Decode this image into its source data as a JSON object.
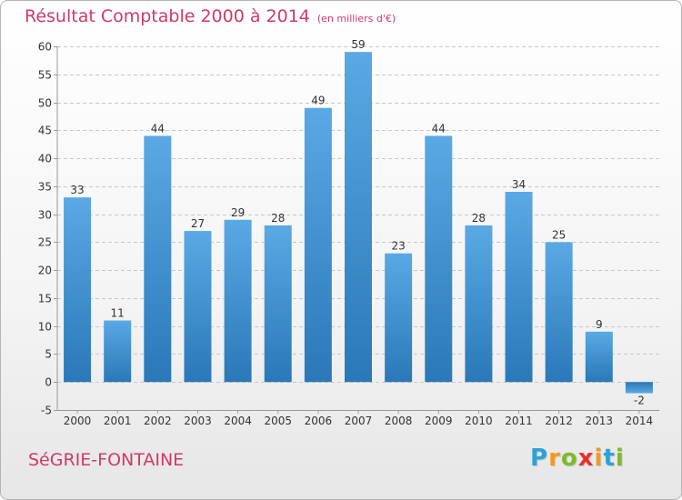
{
  "header": {
    "title": "Résultat Comptable 2000 à 2014",
    "subtitle": "(en milliers d'€)"
  },
  "footer": {
    "commune": "SéGRIE-FONTAINE",
    "logo_letters": [
      "P",
      "r",
      "o",
      "x",
      "i",
      "t",
      "i"
    ],
    "logo_colors": [
      "#2aa3d8",
      "#f39a1e",
      "#7dbb2a",
      "#e5332a",
      "#f39a1e",
      "#2aa3d8",
      "#7dbb2a"
    ]
  },
  "chart_data": {
    "type": "bar",
    "title": "Résultat Comptable 2000 à 2014",
    "subtitle": "(en milliers d'€)",
    "categories": [
      "2000",
      "2001",
      "2002",
      "2003",
      "2004",
      "2005",
      "2006",
      "2007",
      "2008",
      "2009",
      "2010",
      "2011",
      "2012",
      "2013",
      "2014"
    ],
    "values": [
      33,
      11,
      44,
      27,
      29,
      28,
      49,
      59,
      23,
      44,
      28,
      34,
      25,
      9,
      -2
    ],
    "ylim": [
      -5,
      60
    ],
    "yticks": [
      -5,
      0,
      5,
      10,
      15,
      20,
      25,
      30,
      35,
      40,
      45,
      50,
      55,
      60
    ],
    "grid": true,
    "bar_color_top": "#5aa9e4",
    "bar_color_bottom": "#2a78b8",
    "text_color": "#333333"
  }
}
